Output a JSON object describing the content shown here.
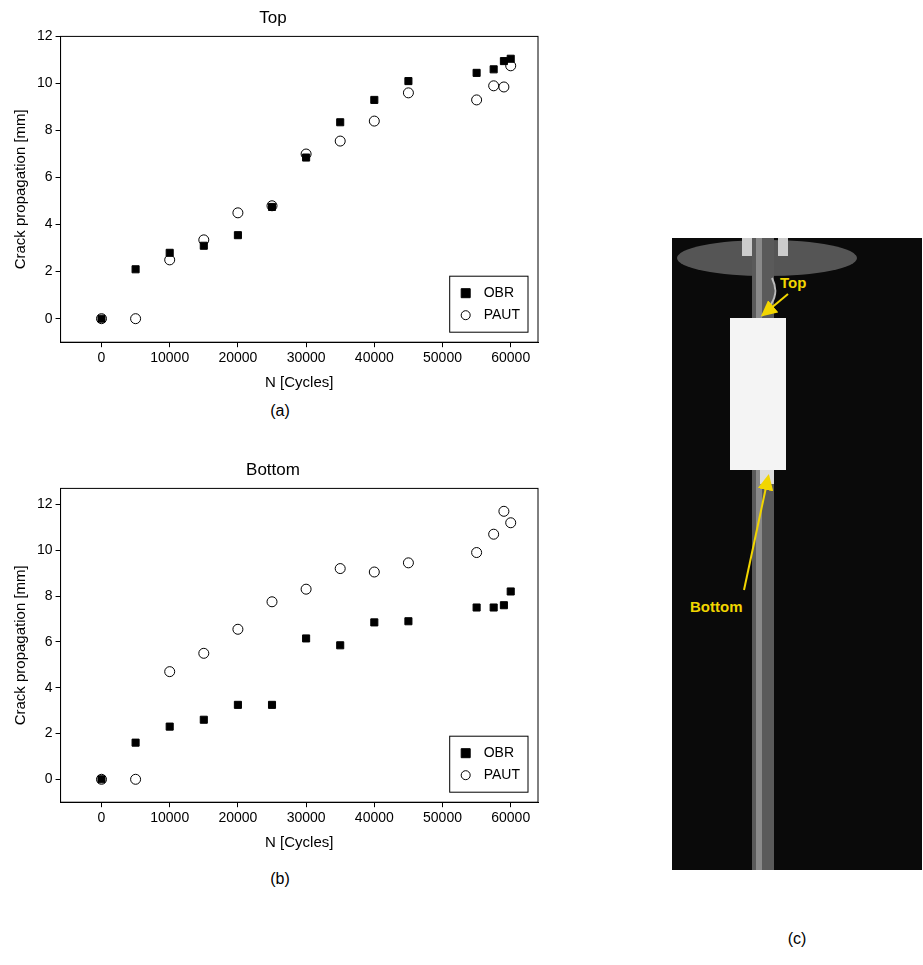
{
  "chart_data": [
    {
      "type": "scatter",
      "panel_label": "(a)",
      "title": "Top",
      "x_label": "N [Cycles]",
      "y_label": "Crack propagation [mm]",
      "x": [
        0,
        5000,
        10000,
        15000,
        20000,
        25000,
        30000,
        35000,
        40000,
        45000,
        55000,
        57500,
        59000,
        60000
      ],
      "series": [
        {
          "name": "OBR",
          "color": "#000000",
          "marker": "square",
          "values": [
            0,
            2.1,
            2.8,
            3.1,
            3.55,
            4.75,
            6.85,
            8.35,
            9.3,
            10.1,
            10.45,
            10.6,
            10.95,
            11.05
          ]
        },
        {
          "name": "PAUT",
          "color": "#000000",
          "marker": "open_circle",
          "values": [
            0,
            0,
            2.5,
            3.35,
            4.5,
            4.8,
            7.0,
            7.55,
            8.4,
            9.6,
            9.3,
            9.9,
            9.85,
            10.75
          ]
        }
      ],
      "xlim": [
        -6000,
        64000
      ],
      "xticks": [
        0,
        10000,
        20000,
        30000,
        40000,
        50000,
        60000
      ],
      "ylim": [
        -1,
        12
      ],
      "yticks": [
        0,
        2,
        4,
        6,
        8,
        10,
        12
      ],
      "grid": false,
      "legend": "lower right"
    },
    {
      "type": "scatter",
      "panel_label": "(b)",
      "title": "Bottom",
      "x_label": "N [Cycles]",
      "y_label": "Crack propagation [mm]",
      "x": [
        0,
        5000,
        10000,
        15000,
        20000,
        25000,
        30000,
        35000,
        40000,
        45000,
        55000,
        57500,
        59000,
        60000
      ],
      "series": [
        {
          "name": "OBR",
          "color": "#000000",
          "marker": "square",
          "values": [
            0,
            1.6,
            2.3,
            2.6,
            3.25,
            3.25,
            6.15,
            5.85,
            6.85,
            6.9,
            7.5,
            7.5,
            7.6,
            8.2
          ]
        },
        {
          "name": "PAUT",
          "color": "#000000",
          "marker": "open_circle",
          "values": [
            0,
            0,
            4.7,
            5.5,
            6.55,
            7.75,
            8.3,
            9.2,
            9.05,
            9.45,
            9.9,
            10.7,
            11.7,
            11.2
          ]
        }
      ],
      "xlim": [
        -6000,
        64000
      ],
      "xticks": [
        0,
        10000,
        20000,
        30000,
        40000,
        50000,
        60000
      ],
      "ylim": [
        -1,
        12.7
      ],
      "yticks": [
        0,
        2,
        4,
        6,
        8,
        10,
        12
      ],
      "grid": false,
      "legend": "lower right"
    }
  ],
  "image": {
    "panel_label": "(c)",
    "annotations": [
      "Top",
      "Bottom"
    ]
  }
}
